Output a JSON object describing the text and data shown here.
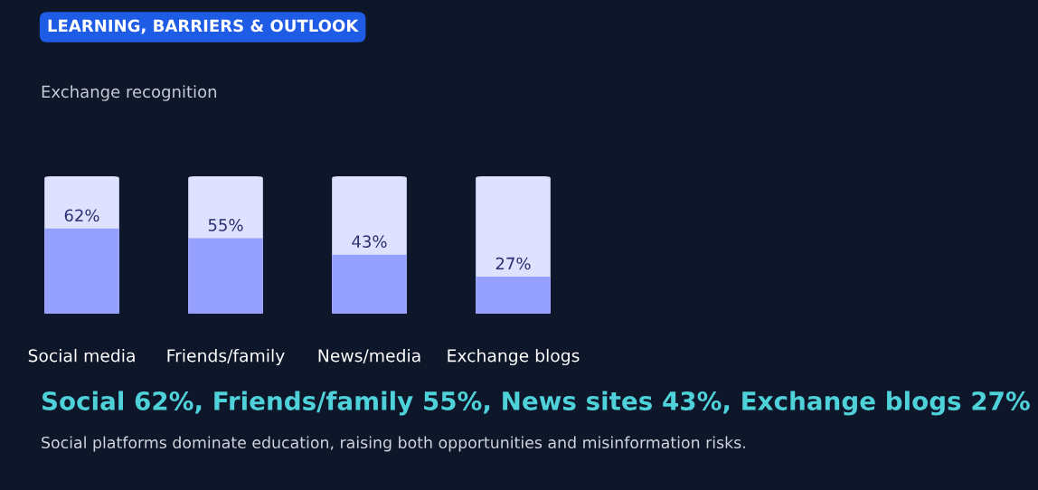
{
  "chart_data": {
    "type": "bar",
    "title": "LEARNING, BARRIERS & OUTLOOK",
    "subtitle": "Exchange recognition",
    "categories": [
      "Social media",
      "Friends/family",
      "News/media",
      "Exchange blogs"
    ],
    "values": [
      62,
      55,
      43,
      27
    ],
    "color": "#96a0ff",
    "value_labels": [
      "62%",
      "55%",
      "43%",
      "27%"
    ],
    "ylim": [
      0,
      100
    ],
    "tick_labels": "x",
    "grid": false,
    "legend": false,
    "annotations": [
      "Social 62%, Friends/family 55%, News sites 43%, Exchange blogs 27%",
      "Social platforms dominate education, raising both opportunities and misinformation risks."
    ]
  }
}
